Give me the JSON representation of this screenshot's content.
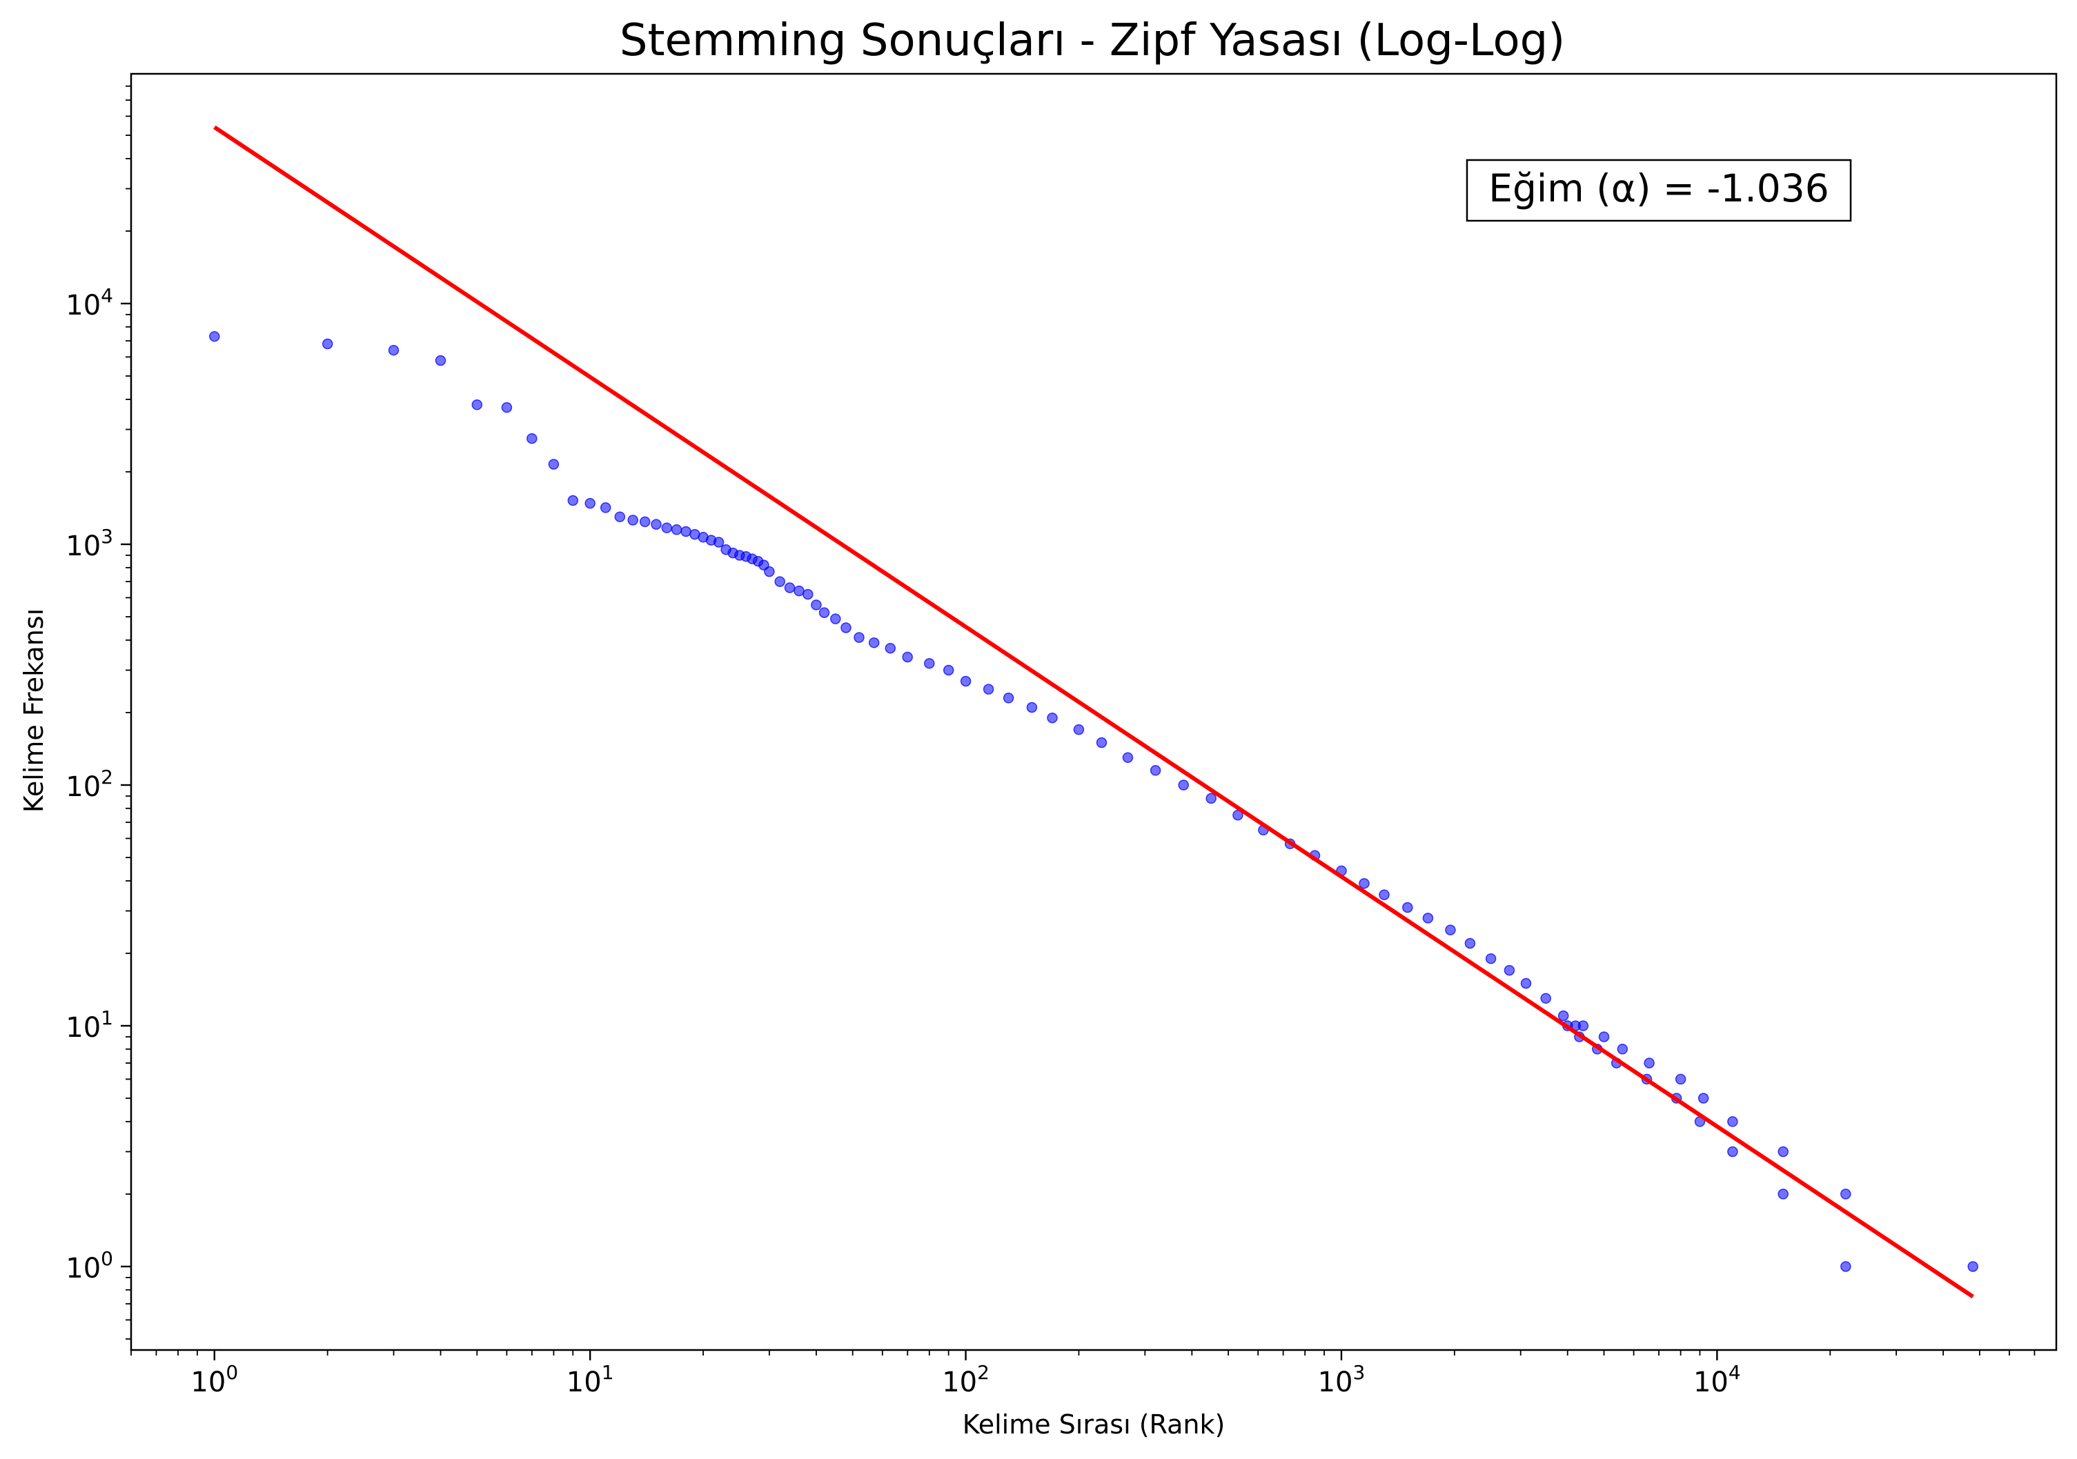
{
  "chart_data": {
    "type": "scatter",
    "title": "Stemming Sonuçları - Zipf Yasası (Log-Log)",
    "xlabel": "Kelime Sırası (Rank)",
    "ylabel": "Kelime Frekansı",
    "xscale": "log",
    "yscale": "log",
    "xlim": [
      0.6,
      80000
    ],
    "ylim": [
      0.45,
      90000
    ],
    "grid": false,
    "x_ticks": [
      {
        "value": 1,
        "base": "10",
        "exp": "0"
      },
      {
        "value": 10,
        "base": "10",
        "exp": "1"
      },
      {
        "value": 100,
        "base": "10",
        "exp": "2"
      },
      {
        "value": 1000,
        "base": "10",
        "exp": "3"
      },
      {
        "value": 10000,
        "base": "10",
        "exp": "4"
      }
    ],
    "y_ticks": [
      {
        "value": 1,
        "base": "10",
        "exp": "0"
      },
      {
        "value": 10,
        "base": "10",
        "exp": "1"
      },
      {
        "value": 100,
        "base": "10",
        "exp": "2"
      },
      {
        "value": 1000,
        "base": "10",
        "exp": "3"
      },
      {
        "value": 10000,
        "base": "10",
        "exp": "4"
      }
    ],
    "series": [
      {
        "kind": "scatter",
        "color": "#0000ff",
        "points": [
          [
            1,
            7300
          ],
          [
            2,
            6800
          ],
          [
            3,
            6400
          ],
          [
            4,
            5800
          ],
          [
            5,
            3800
          ],
          [
            6,
            3700
          ],
          [
            7,
            2750
          ],
          [
            8,
            2150
          ],
          [
            9,
            1520
          ],
          [
            10,
            1480
          ],
          [
            11,
            1420
          ],
          [
            12,
            1300
          ],
          [
            13,
            1260
          ],
          [
            14,
            1240
          ],
          [
            15,
            1210
          ],
          [
            16,
            1170
          ],
          [
            17,
            1150
          ],
          [
            18,
            1130
          ],
          [
            19,
            1100
          ],
          [
            20,
            1070
          ],
          [
            21,
            1040
          ],
          [
            22,
            1020
          ],
          [
            23,
            950
          ],
          [
            24,
            920
          ],
          [
            25,
            900
          ],
          [
            26,
            890
          ],
          [
            27,
            870
          ],
          [
            28,
            850
          ],
          [
            29,
            820
          ],
          [
            30,
            770
          ],
          [
            32,
            700
          ],
          [
            34,
            660
          ],
          [
            36,
            640
          ],
          [
            38,
            620
          ],
          [
            40,
            560
          ],
          [
            42,
            520
          ],
          [
            45,
            490
          ],
          [
            48,
            450
          ],
          [
            52,
            410
          ],
          [
            57,
            390
          ],
          [
            63,
            370
          ],
          [
            70,
            340
          ],
          [
            80,
            320
          ],
          [
            90,
            300
          ],
          [
            100,
            270
          ],
          [
            115,
            250
          ],
          [
            130,
            230
          ],
          [
            150,
            210
          ],
          [
            170,
            190
          ],
          [
            200,
            170
          ],
          [
            230,
            150
          ],
          [
            270,
            130
          ],
          [
            320,
            115
          ],
          [
            380,
            100
          ],
          [
            450,
            88
          ],
          [
            530,
            75
          ],
          [
            620,
            65
          ],
          [
            730,
            57
          ],
          [
            850,
            51
          ],
          [
            1000,
            44
          ],
          [
            1150,
            39
          ],
          [
            1300,
            35
          ],
          [
            1500,
            31
          ],
          [
            1700,
            28
          ],
          [
            1950,
            25
          ],
          [
            2200,
            22
          ],
          [
            2500,
            19
          ],
          [
            2800,
            17
          ],
          [
            3100,
            15
          ],
          [
            3500,
            13
          ],
          [
            3900,
            11
          ],
          [
            4200,
            10
          ],
          [
            4000,
            10
          ],
          [
            4400,
            10
          ],
          [
            4300,
            9
          ],
          [
            5000,
            9
          ],
          [
            4800,
            8
          ],
          [
            5600,
            8
          ],
          [
            5400,
            7
          ],
          [
            6600,
            7
          ],
          [
            6500,
            6
          ],
          [
            8000,
            6
          ],
          [
            7800,
            5
          ],
          [
            9200,
            5
          ],
          [
            9000,
            4
          ],
          [
            11000,
            4
          ],
          [
            11000,
            3
          ],
          [
            15000,
            3
          ],
          [
            15000,
            2
          ],
          [
            22000,
            2
          ],
          [
            22000,
            1
          ],
          [
            48000,
            1
          ]
        ]
      },
      {
        "kind": "fit_line",
        "color": "#ff0000",
        "points": [
          [
            1,
            54000
          ],
          [
            48000,
            0.75
          ]
        ]
      }
    ],
    "annotation": "Eğim (α) = -1.036"
  }
}
